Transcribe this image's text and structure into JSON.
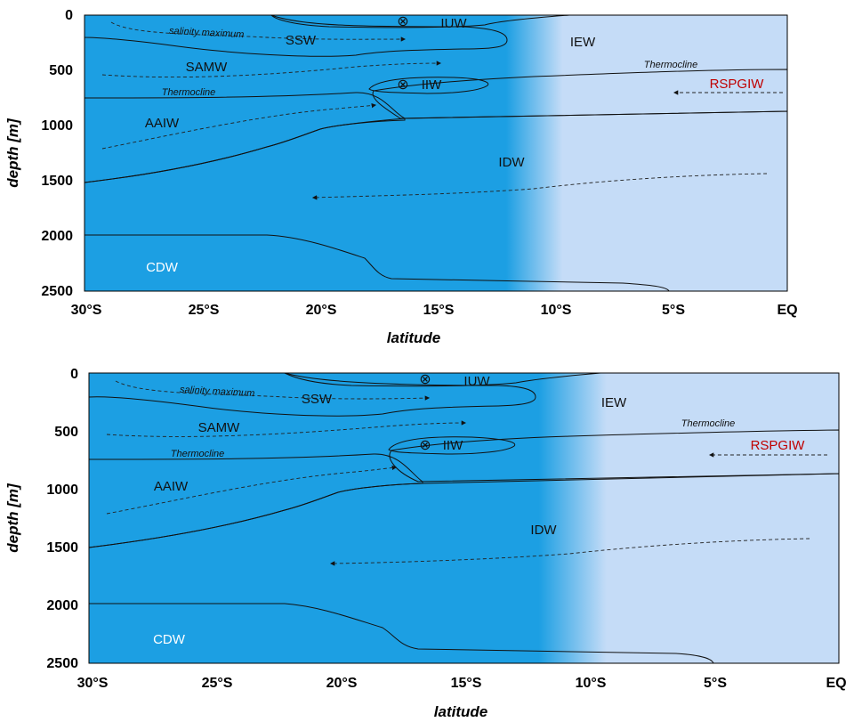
{
  "panels": [
    {
      "id": "top",
      "y_ticks": [
        "0",
        "500",
        "1000",
        "1500",
        "2000",
        "2500"
      ],
      "x_ticks": [
        "30°S",
        "25°S",
        "20°S",
        "15°S",
        "10°S",
        "5°S",
        "EQ"
      ],
      "y_label": "depth [m]",
      "x_label": "latitude",
      "labels": {
        "iuw": "IUW",
        "ssw": "SSW",
        "iew": "IEW",
        "samw": "SAMW",
        "iiw": "IIW",
        "rspgiw": "RSPGIW",
        "aaiw": "AAIW",
        "idw": "IDW",
        "cdw": "CDW",
        "salinity": "salinity maximum",
        "thermo1": "Thermocline",
        "thermo2": "Thermocline",
        "cross_symbol": "⊗"
      }
    },
    {
      "id": "bottom",
      "y_ticks": [
        "0",
        "500",
        "1000",
        "1500",
        "2000",
        "2500"
      ],
      "x_ticks": [
        "30°S",
        "25°S",
        "20°S",
        "15°S",
        "10°S",
        "5°S",
        "EQ"
      ],
      "y_label": "depth [m]",
      "x_label": "latitude",
      "labels": {
        "iuw": "IUW",
        "ssw": "SSW",
        "iew": "IEW",
        "samw": "SAMW",
        "iiw": "IIW",
        "rspgiw": "RSPGIW",
        "aaiw": "AAIW",
        "idw": "IDW",
        "cdw": "CDW",
        "salinity": "salinity maximum",
        "thermo1": "Thermocline",
        "thermo2": "Thermocline",
        "cross_symbol": "⊗"
      }
    }
  ],
  "colors": {
    "iew": "#c5dcf7",
    "samw": "#1c9fe3",
    "ssw": "#f3ae82",
    "iuw": "#c9e6b1",
    "aaiw": "#5fb13c",
    "aaiw_light": "#a6d878",
    "rspgiw": "#f25b5b",
    "idw": "#7b93de",
    "cdw": "#2f5396"
  }
}
